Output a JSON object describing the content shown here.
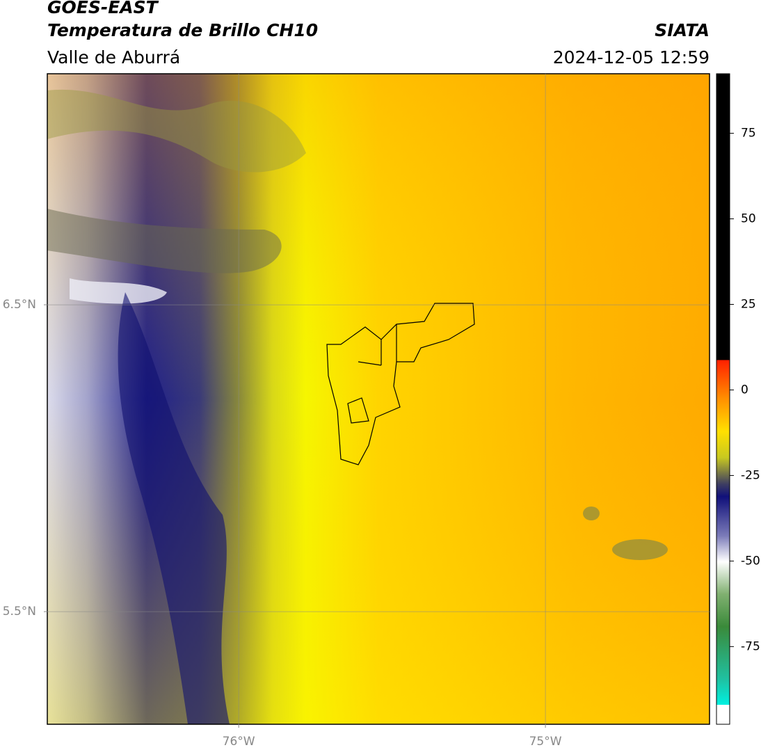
{
  "header": {
    "title": "GOES-EAST",
    "subtitle": "Temperatura de Brillo CH10",
    "region": "Valle de Aburrá",
    "source": "SIATA",
    "datetime": "2024-12-05 12:59"
  },
  "map": {
    "xlim": [
      -76.624,
      -74.465
    ],
    "ylim": [
      5.133,
      7.253
    ],
    "xticks": [
      {
        "value": -76,
        "label": "76°W"
      },
      {
        "value": -75,
        "label": "75°W"
      }
    ],
    "yticks": [
      {
        "value": 6.5,
        "label": "6.5°N"
      },
      {
        "value": 5.5,
        "label": "5.5°N"
      }
    ],
    "grid": true
  },
  "colorbar": {
    "lim": [
      -97.7,
      92.4
    ],
    "ticks": [
      75,
      50,
      25,
      0,
      -25,
      -50,
      -75
    ]
  }
}
